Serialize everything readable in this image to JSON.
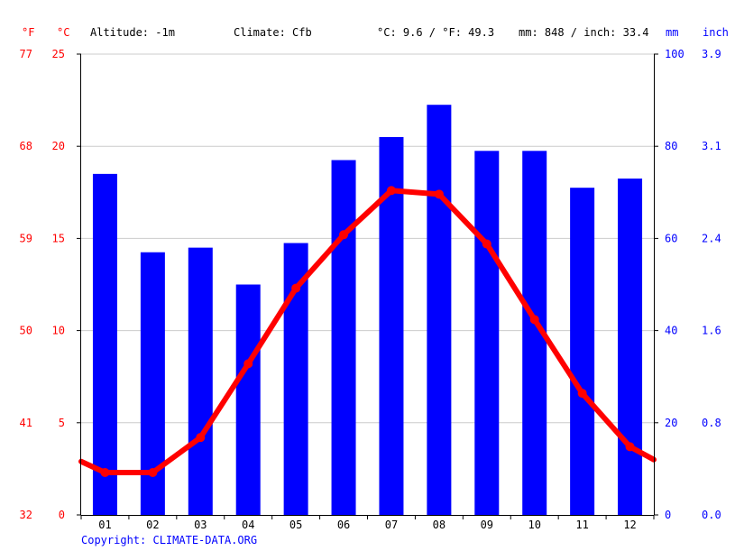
{
  "header": {
    "unit_f": "°F",
    "unit_c": "°C",
    "altitude": "Altitude: -1m",
    "climate": "Climate: Cfb",
    "temp_avg": "°C: 9.6 / °F: 49.3",
    "precip_total": "mm: 848 / inch: 33.4",
    "unit_mm": "mm",
    "unit_inch": "inch"
  },
  "footer": {
    "copyright": "Copyright: CLIMATE-DATA.ORG"
  },
  "colors": {
    "temperature": "#ff0000",
    "precipitation": "#0000ff",
    "grid": "#cccccc",
    "axis": "#000000"
  },
  "chart_data": {
    "type": "bar",
    "categories": [
      "01",
      "02",
      "03",
      "04",
      "05",
      "06",
      "07",
      "08",
      "09",
      "10",
      "11",
      "12"
    ],
    "series": [
      {
        "type": "bar",
        "axis": "right-mm",
        "values": [
          74,
          57,
          58,
          50,
          59,
          77,
          82,
          89,
          79,
          79,
          71,
          73
        ]
      },
      {
        "type": "line",
        "axis": "left-c",
        "values": [
          2.3,
          2.3,
          4.2,
          8.2,
          12.3,
          15.2,
          17.6,
          17.4,
          14.7,
          10.6,
          6.6,
          3.7
        ]
      }
    ],
    "line_edges": {
      "start": 2.9,
      "end": 3.0
    },
    "axes": {
      "left_c": {
        "range": [
          0,
          25
        ],
        "ticks": [
          "0",
          "5",
          "10",
          "15",
          "20",
          "25"
        ]
      },
      "left_f": {
        "range": [
          32,
          77
        ],
        "ticks": [
          "32",
          "41",
          "50",
          "59",
          "68",
          "77"
        ]
      },
      "right_mm": {
        "range": [
          0,
          100
        ],
        "ticks": [
          "0",
          "20",
          "40",
          "60",
          "80",
          "100"
        ]
      },
      "right_inch": {
        "range": [
          0,
          3.9
        ],
        "ticks": [
          "0.0",
          "0.8",
          "1.6",
          "2.4",
          "3.1",
          "3.9"
        ]
      }
    },
    "grid": true
  }
}
